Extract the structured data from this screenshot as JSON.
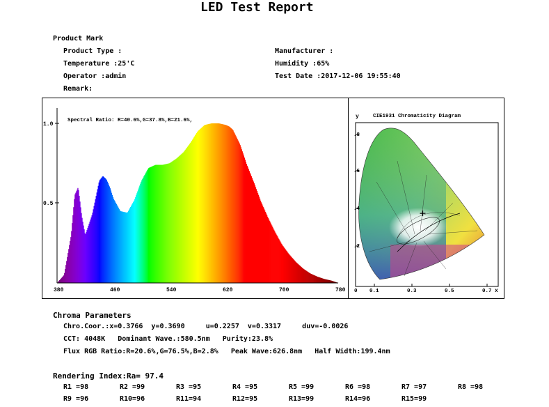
{
  "report": {
    "title": "LED Test Report"
  },
  "product": {
    "heading": "Product Mark",
    "left": [
      {
        "label": "Product Type :",
        "value": ""
      },
      {
        "label": "Temperature :",
        "value": "25'C"
      },
      {
        "label": "Operator :",
        "value": "admin"
      },
      {
        "label": "Remark:",
        "value": ""
      }
    ],
    "right": [
      {
        "label": "Manufacturer :",
        "value": ""
      },
      {
        "label": "Humidity :",
        "value": "65%"
      },
      {
        "label": "Test Date :",
        "value": "2017-12-06 19:55:40"
      }
    ]
  },
  "spectrum": {
    "annotation": "Spectral Ratio:  R=40.6%,G=37.8%,B=21.6%,",
    "y_ticks": [
      "1.0",
      "0.5"
    ],
    "x_ticks": [
      "380",
      "460",
      "540",
      "620",
      "700",
      "780"
    ]
  },
  "cie": {
    "title": "CIE1931 Chromaticity Diagram",
    "ylabel": "y",
    "xlabel": "x",
    "y_ticks": [
      ".8",
      ".6",
      ".4",
      ".2"
    ],
    "x_ticks": [
      "0",
      "0.1",
      "0.3",
      "0.5",
      "0.7"
    ]
  },
  "chroma": {
    "heading": "Chroma Parameters",
    "lines": [
      "Chro.Coor.:x=0.3766  y=0.3690     u=0.2257  v=0.3317     duv=-0.0026",
      "CCT: 4048K   Dominant Wave.:580.5nm   Purity:23.8%",
      "Flux RGB Ratio:R=20.6%,G=76.5%,B=2.8%   Peak Wave:626.8nm   Half Width:199.4nm"
    ]
  },
  "rendering": {
    "heading": "Rendering Index:Ra= 97.4",
    "row1": [
      "R1 =98",
      "R2 =99",
      "R3 =95",
      "R4 =95",
      "R5 =99",
      "R6 =98",
      "R7 =97",
      "R8 =98"
    ],
    "row2": [
      "R9 =96",
      "R10=96",
      "R11=94",
      "R12=95",
      "R13=99",
      "R14=96",
      "R15=99"
    ]
  },
  "chart_data": [
    {
      "type": "area",
      "title": "",
      "annotation": "Spectral Ratio:  R=40.6%,G=37.8%,B=21.6%,",
      "xlabel": "",
      "ylabel": "",
      "xlim": [
        380,
        780
      ],
      "ylim": [
        0,
        1.0
      ],
      "x": [
        380,
        390,
        400,
        405,
        410,
        415,
        420,
        430,
        440,
        445,
        450,
        455,
        460,
        470,
        480,
        490,
        500,
        510,
        520,
        530,
        540,
        550,
        560,
        570,
        580,
        590,
        600,
        610,
        620,
        625,
        630,
        640,
        650,
        660,
        670,
        680,
        690,
        700,
        710,
        720,
        730,
        740,
        750,
        760,
        770,
        780
      ],
      "values": [
        0.0,
        0.05,
        0.3,
        0.55,
        0.6,
        0.42,
        0.3,
        0.43,
        0.64,
        0.67,
        0.65,
        0.6,
        0.53,
        0.45,
        0.44,
        0.52,
        0.64,
        0.72,
        0.74,
        0.74,
        0.75,
        0.78,
        0.82,
        0.88,
        0.95,
        0.99,
        1.0,
        1.0,
        0.99,
        0.98,
        0.96,
        0.87,
        0.74,
        0.63,
        0.51,
        0.41,
        0.32,
        0.24,
        0.18,
        0.13,
        0.09,
        0.06,
        0.04,
        0.025,
        0.015,
        0.0
      ]
    },
    {
      "type": "scatter",
      "title": "CIE1931 Chromaticity Diagram",
      "xlabel": "x",
      "ylabel": "y",
      "xlim": [
        0,
        0.8
      ],
      "ylim": [
        0,
        0.9
      ],
      "points": [
        {
          "x": 0.3766,
          "y": 0.369
        }
      ]
    }
  ]
}
